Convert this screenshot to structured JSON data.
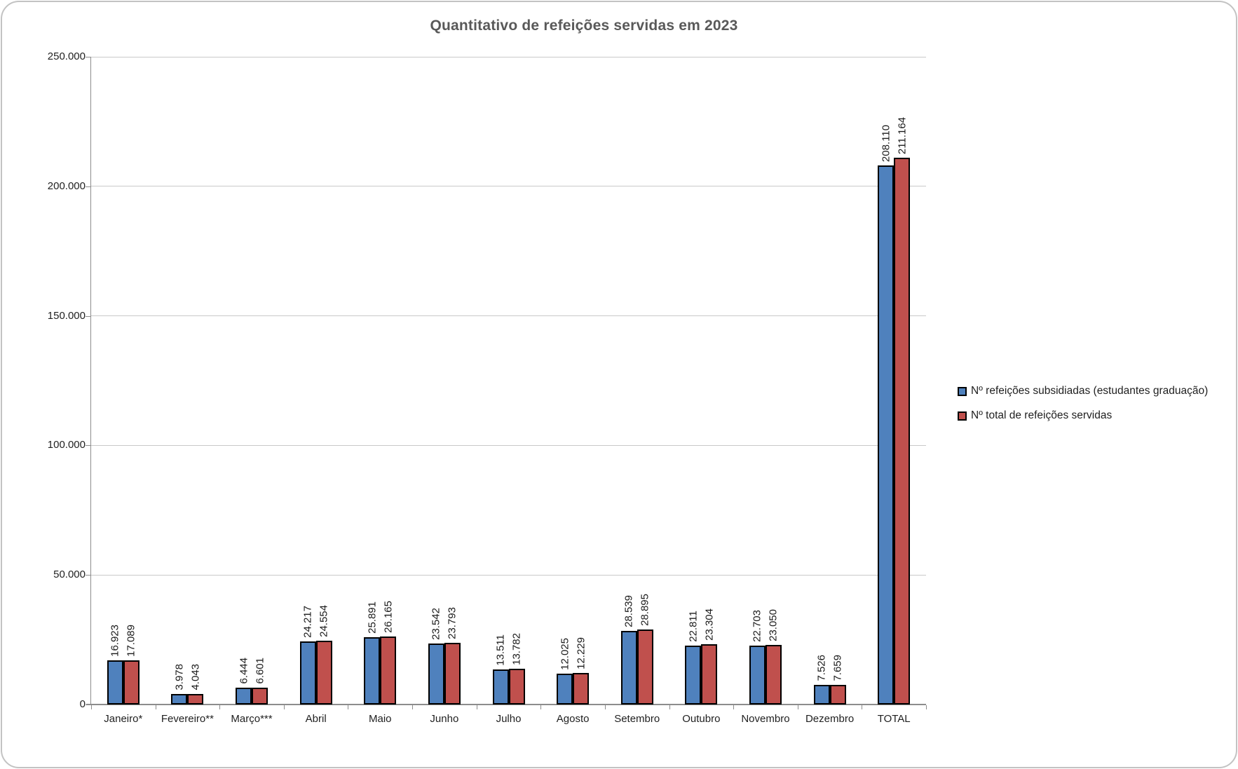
{
  "title": "Quantitativo de refeições servidas em 2023",
  "colors": {
    "series_blue": "#4F81BD",
    "series_red": "#C0504D",
    "bar_border": "#000000",
    "gridline": "#C9C9C9",
    "axis_line": "#8C8C8C",
    "title_text": "#595959",
    "frame_border": "#C3C3C3",
    "label_text": "#1A1A1A"
  },
  "legend": {
    "position": "right",
    "items": [
      {
        "label": "Nº refeições subsidiadas (estudantes graduação)",
        "color": "#4F81BD"
      },
      {
        "label": "Nº total de refeições servidas",
        "color": "#C0504D"
      }
    ]
  },
  "chart_data": {
    "type": "bar",
    "title": "Quantitativo de refeições servidas em 2023",
    "categories": [
      "Janeiro*",
      "Fevereiro**",
      "Março***",
      "Abril",
      "Maio",
      "Junho",
      "Julho",
      "Agosto",
      "Setembro",
      "Outubro",
      "Novembro",
      "Dezembro",
      "TOTAL"
    ],
    "series": [
      {
        "name": "Nº refeições subsidiadas (estudantes graduação)",
        "color": "#4F81BD",
        "values": [
          16923,
          3978,
          6444,
          24217,
          25891,
          23542,
          13511,
          12025,
          28539,
          22811,
          22703,
          7526,
          208110
        ]
      },
      {
        "name": "Nº total de refeições servidas",
        "color": "#C0504D",
        "values": [
          17089,
          4043,
          6601,
          24554,
          26165,
          23793,
          13782,
          12229,
          28895,
          23304,
          23050,
          7659,
          211164
        ]
      }
    ],
    "data_labels": {
      "visible": true,
      "orientation": "rotated-90",
      "thousands_separator": "."
    },
    "xlabel": "",
    "ylabel": "",
    "ylim": [
      0,
      250000
    ],
    "y_ticks": {
      "values": [
        0,
        50000,
        100000,
        150000,
        200000,
        250000
      ],
      "labels": [
        "0",
        "50.000",
        "100.000",
        "150.000",
        "200.000",
        "250.000"
      ]
    },
    "grid": "horizontal",
    "legend_position": "right"
  }
}
